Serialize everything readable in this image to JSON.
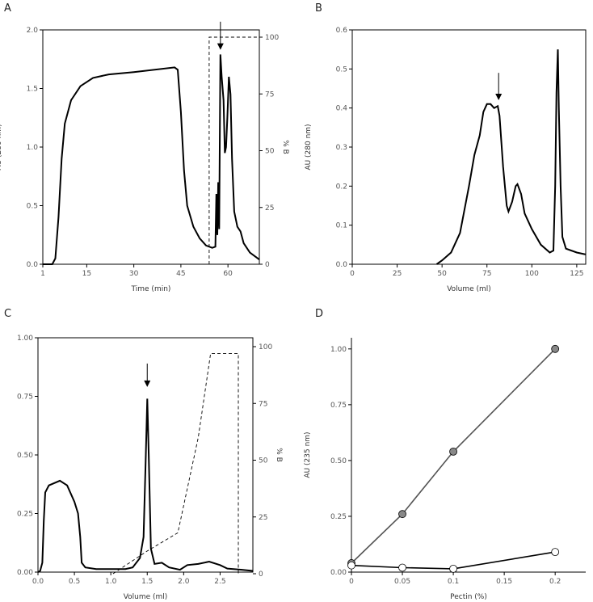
{
  "chart_data": [
    {
      "panel": "A",
      "type": "line",
      "xlabel": "Time (min)",
      "ylabel": "AU (280 nm)",
      "y2label": "% B",
      "xlim": [
        1,
        70
      ],
      "ylim": [
        0,
        2
      ],
      "y2lim": [
        0,
        100
      ],
      "xticks": [
        1,
        15,
        30,
        45,
        60
      ],
      "xtick_labels": [
        "1",
        "15",
        "30",
        "45",
        "60"
      ],
      "yticks": [
        0,
        0.5,
        1,
        1.5,
        2
      ],
      "ytick_labels": [
        "0.0",
        "0.5",
        "1.0",
        "1.5",
        "2.0"
      ],
      "y2ticks": [
        0,
        25,
        50,
        75,
        100
      ],
      "y2tick_labels": [
        "0",
        "25",
        "50",
        "75",
        "100"
      ],
      "series": [
        {
          "name": "absorbance",
          "style": "solid",
          "points": [
            [
              1,
              0
            ],
            [
              4,
              0
            ],
            [
              5,
              0.05
            ],
            [
              6,
              0.4
            ],
            [
              7,
              0.9
            ],
            [
              8,
              1.2
            ],
            [
              10,
              1.4
            ],
            [
              13,
              1.52
            ],
            [
              17,
              1.59
            ],
            [
              22,
              1.62
            ],
            [
              30,
              1.64
            ],
            [
              43,
              1.68
            ],
            [
              44,
              1.66
            ],
            [
              45,
              1.3
            ],
            [
              46,
              0.8
            ],
            [
              47,
              0.5
            ],
            [
              49,
              0.32
            ],
            [
              51,
              0.22
            ],
            [
              53,
              0.16
            ],
            [
              55,
              0.14
            ],
            [
              56,
              0.15
            ],
            [
              56.3,
              0.6
            ],
            [
              56.6,
              0.25
            ],
            [
              56.9,
              0.7
            ],
            [
              57.2,
              0.3
            ],
            [
              57.6,
              1.79
            ],
            [
              58,
              1.6
            ],
            [
              58.6,
              1.4
            ],
            [
              59,
              0.95
            ],
            [
              59.4,
              1.0
            ],
            [
              59.8,
              1.25
            ],
            [
              60.3,
              1.6
            ],
            [
              60.8,
              1.45
            ],
            [
              61.3,
              0.9
            ],
            [
              62,
              0.45
            ],
            [
              63,
              0.32
            ],
            [
              64,
              0.28
            ],
            [
              65,
              0.18
            ],
            [
              67,
              0.1
            ],
            [
              70,
              0.04
            ]
          ]
        },
        {
          "name": "%B gradient",
          "style": "dashed",
          "axis": "y2",
          "points": [
            [
              54,
              0
            ],
            [
              54,
              100
            ],
            [
              70,
              100
            ]
          ]
        }
      ],
      "arrow": {
        "x": 57.6,
        "from": 2.07,
        "to": 1.83
      }
    },
    {
      "panel": "B",
      "type": "line",
      "xlabel": "Volume (ml)",
      "ylabel": "AU (280 nm)",
      "xlim": [
        0,
        130
      ],
      "ylim": [
        0,
        0.6
      ],
      "xticks": [
        0,
        25,
        50,
        75,
        100,
        125
      ],
      "xtick_labels": [
        "0",
        "25",
        "50",
        "75",
        "100",
        "125"
      ],
      "yticks": [
        0,
        0.1,
        0.2,
        0.3,
        0.4,
        0.5,
        0.6
      ],
      "ytick_labels": [
        "0.0",
        "0.1",
        "0.2",
        "0.3",
        "0.4",
        "0.5",
        "0.6"
      ],
      "series": [
        {
          "name": "absorbance",
          "style": "solid",
          "points": [
            [
              47,
              0
            ],
            [
              50,
              0.01
            ],
            [
              55,
              0.03
            ],
            [
              60,
              0.08
            ],
            [
              65,
              0.2
            ],
            [
              68,
              0.28
            ],
            [
              71,
              0.33
            ],
            [
              73,
              0.39
            ],
            [
              75,
              0.41
            ],
            [
              77,
              0.41
            ],
            [
              79,
              0.4
            ],
            [
              81,
              0.405
            ],
            [
              82,
              0.38
            ],
            [
              84,
              0.25
            ],
            [
              86,
              0.15
            ],
            [
              87,
              0.135
            ],
            [
              89,
              0.16
            ],
            [
              91,
              0.2
            ],
            [
              92,
              0.205
            ],
            [
              94,
              0.18
            ],
            [
              96,
              0.13
            ],
            [
              100,
              0.09
            ],
            [
              105,
              0.05
            ],
            [
              110,
              0.03
            ],
            [
              112,
              0.035
            ],
            [
              113,
              0.2
            ],
            [
              113.7,
              0.44
            ],
            [
              114.5,
              0.55
            ],
            [
              115,
              0.4
            ],
            [
              116,
              0.2
            ],
            [
              117,
              0.07
            ],
            [
              119,
              0.04
            ],
            [
              125,
              0.03
            ],
            [
              130,
              0.025
            ]
          ]
        }
      ],
      "arrow": {
        "x": 81.5,
        "from": 0.49,
        "to": 0.42
      }
    },
    {
      "panel": "C",
      "type": "line",
      "xlabel": "Volume (ml)",
      "ylabel": "AU (280 nm)",
      "y2label": "% B",
      "xlim": [
        0,
        2.95
      ],
      "ylim": [
        0,
        1
      ],
      "y2lim": [
        0,
        100
      ],
      "xticks": [
        0,
        0.5,
        1,
        1.5,
        2,
        2.5
      ],
      "xtick_labels": [
        "0.0",
        "0.5",
        "1.0",
        "1.5",
        "2.0",
        "2.5"
      ],
      "yticks": [
        0,
        0.25,
        0.5,
        0.75,
        1
      ],
      "ytick_labels": [
        "0.00",
        "0.25",
        "0.50",
        "0.75",
        "1.00"
      ],
      "y2ticks": [
        0,
        25,
        50,
        75,
        100
      ],
      "y2tick_labels": [
        "0",
        "25",
        "50",
        "75",
        "100"
      ],
      "series": [
        {
          "name": "absorbance",
          "style": "solid",
          "points": [
            [
              0,
              0
            ],
            [
              0.03,
              0.005
            ],
            [
              0.06,
              0.04
            ],
            [
              0.08,
              0.22
            ],
            [
              0.1,
              0.34
            ],
            [
              0.15,
              0.37
            ],
            [
              0.3,
              0.39
            ],
            [
              0.4,
              0.37
            ],
            [
              0.5,
              0.3
            ],
            [
              0.55,
              0.25
            ],
            [
              0.58,
              0.15
            ],
            [
              0.6,
              0.04
            ],
            [
              0.65,
              0.02
            ],
            [
              0.8,
              0.013
            ],
            [
              1.2,
              0.013
            ],
            [
              1.3,
              0.02
            ],
            [
              1.4,
              0.06
            ],
            [
              1.45,
              0.15
            ],
            [
              1.48,
              0.5
            ],
            [
              1.5,
              0.74
            ],
            [
              1.52,
              0.5
            ],
            [
              1.55,
              0.1
            ],
            [
              1.6,
              0.035
            ],
            [
              1.7,
              0.04
            ],
            [
              1.8,
              0.02
            ],
            [
              1.95,
              0.01
            ],
            [
              2.05,
              0.03
            ],
            [
              2.2,
              0.035
            ],
            [
              2.35,
              0.045
            ],
            [
              2.5,
              0.03
            ],
            [
              2.6,
              0.015
            ],
            [
              2.8,
              0.01
            ],
            [
              2.95,
              0.005
            ]
          ]
        },
        {
          "name": "%B gradient",
          "style": "dashed",
          "axis": "y2",
          "points": [
            [
              1.03,
              0
            ],
            [
              1.5,
              10
            ],
            [
              1.92,
              18
            ],
            [
              2.2,
              60
            ],
            [
              2.37,
              97
            ],
            [
              2.75,
              97
            ],
            [
              2.75,
              0
            ]
          ]
        }
      ],
      "arrow": {
        "x": 1.5,
        "from": 0.89,
        "to": 0.79
      }
    },
    {
      "panel": "D",
      "type": "scatter",
      "xlabel": "Pectin (%)",
      "ylabel": "AU (235 nm)",
      "xlim": [
        0,
        0.23
      ],
      "ylim": [
        0,
        1.05
      ],
      "xticks": [
        0,
        0.05,
        0.1,
        0.15,
        0.2
      ],
      "xtick_labels": [
        "0",
        "0.05",
        "0.1",
        "0.15",
        "0.2"
      ],
      "yticks": [
        0,
        0.25,
        0.5,
        0.75,
        1
      ],
      "ytick_labels": [
        "0.00",
        "0.25",
        "0.50",
        "0.75",
        "1.00"
      ],
      "series": [
        {
          "name": "filled",
          "marker": "#888888",
          "points": [
            [
              0,
              0.04
            ],
            [
              0.05,
              0.26
            ],
            [
              0.1,
              0.54
            ],
            [
              0.2,
              1.0
            ]
          ]
        },
        {
          "name": "open",
          "marker": "#ffffff",
          "points": [
            [
              0,
              0.03
            ],
            [
              0.05,
              0.02
            ],
            [
              0.1,
              0.015
            ],
            [
              0.2,
              0.09
            ]
          ]
        }
      ]
    }
  ]
}
